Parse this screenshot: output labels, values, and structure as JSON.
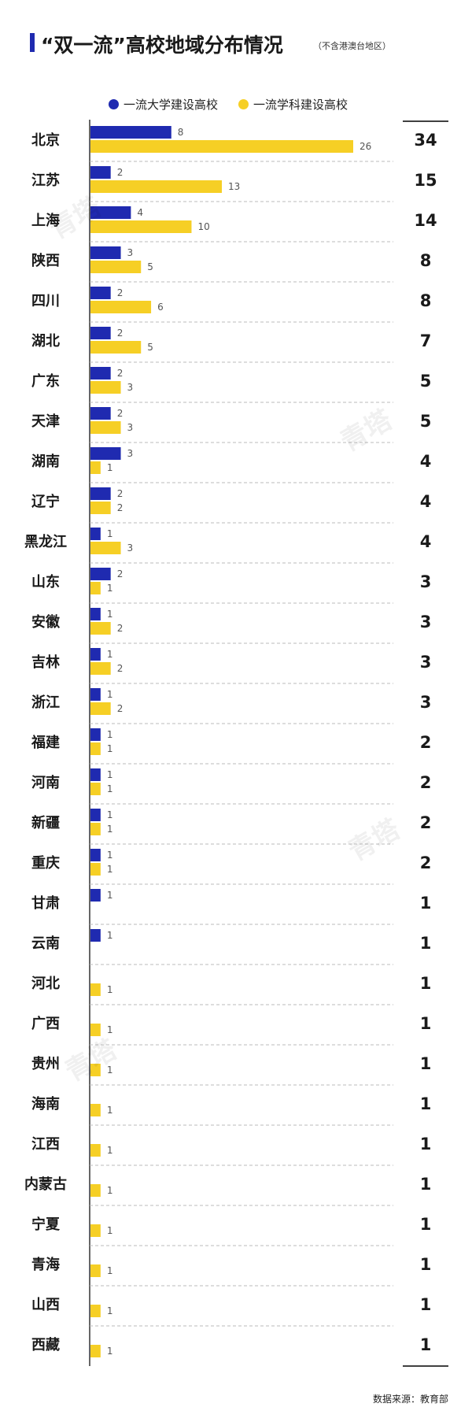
{
  "title": "“双一流”高校地域分布情况",
  "subtitle": "（不含港澳台地区）",
  "source": "数据来源：教育部",
  "watermark": "青塔",
  "colors": {
    "university": "#1f2ab0",
    "discipline": "#f6cf25",
    "text": "#1a1a1a",
    "value_label": "#555555",
    "grid": "#bbbbbb",
    "axis": "#000000"
  },
  "chart_data": {
    "type": "bar",
    "orientation": "horizontal",
    "legend": [
      "一流大学建设高校",
      "一流学科建设高校"
    ],
    "legend_position": "top",
    "categories": [
      "北京",
      "江苏",
      "上海",
      "陕西",
      "四川",
      "湖北",
      "广东",
      "天津",
      "湖南",
      "辽宁",
      "黑龙江",
      "山东",
      "安徽",
      "吉林",
      "浙江",
      "福建",
      "河南",
      "新疆",
      "重庆",
      "甘肃",
      "云南",
      "河北",
      "广西",
      "贵州",
      "海南",
      "江西",
      "内蒙古",
      "宁夏",
      "青海",
      "山西",
      "西藏"
    ],
    "series": [
      {
        "name": "一流大学建设高校",
        "values": [
          8,
          2,
          4,
          3,
          2,
          2,
          2,
          2,
          3,
          2,
          1,
          2,
          1,
          1,
          1,
          1,
          1,
          1,
          1,
          1,
          1,
          0,
          0,
          0,
          0,
          0,
          0,
          0,
          0,
          0,
          0
        ]
      },
      {
        "name": "一流学科建设高校",
        "values": [
          26,
          13,
          10,
          5,
          6,
          5,
          3,
          3,
          1,
          2,
          3,
          1,
          2,
          2,
          2,
          1,
          1,
          1,
          1,
          0,
          0,
          1,
          1,
          1,
          1,
          1,
          1,
          1,
          1,
          1,
          1
        ]
      }
    ],
    "totals": [
      34,
      15,
      14,
      8,
      8,
      7,
      5,
      5,
      4,
      4,
      4,
      3,
      3,
      3,
      3,
      2,
      2,
      2,
      2,
      1,
      1,
      1,
      1,
      1,
      1,
      1,
      1,
      1,
      1,
      1,
      1
    ],
    "xlim": [
      0,
      26
    ],
    "grid": "dashed horizontal separators"
  }
}
